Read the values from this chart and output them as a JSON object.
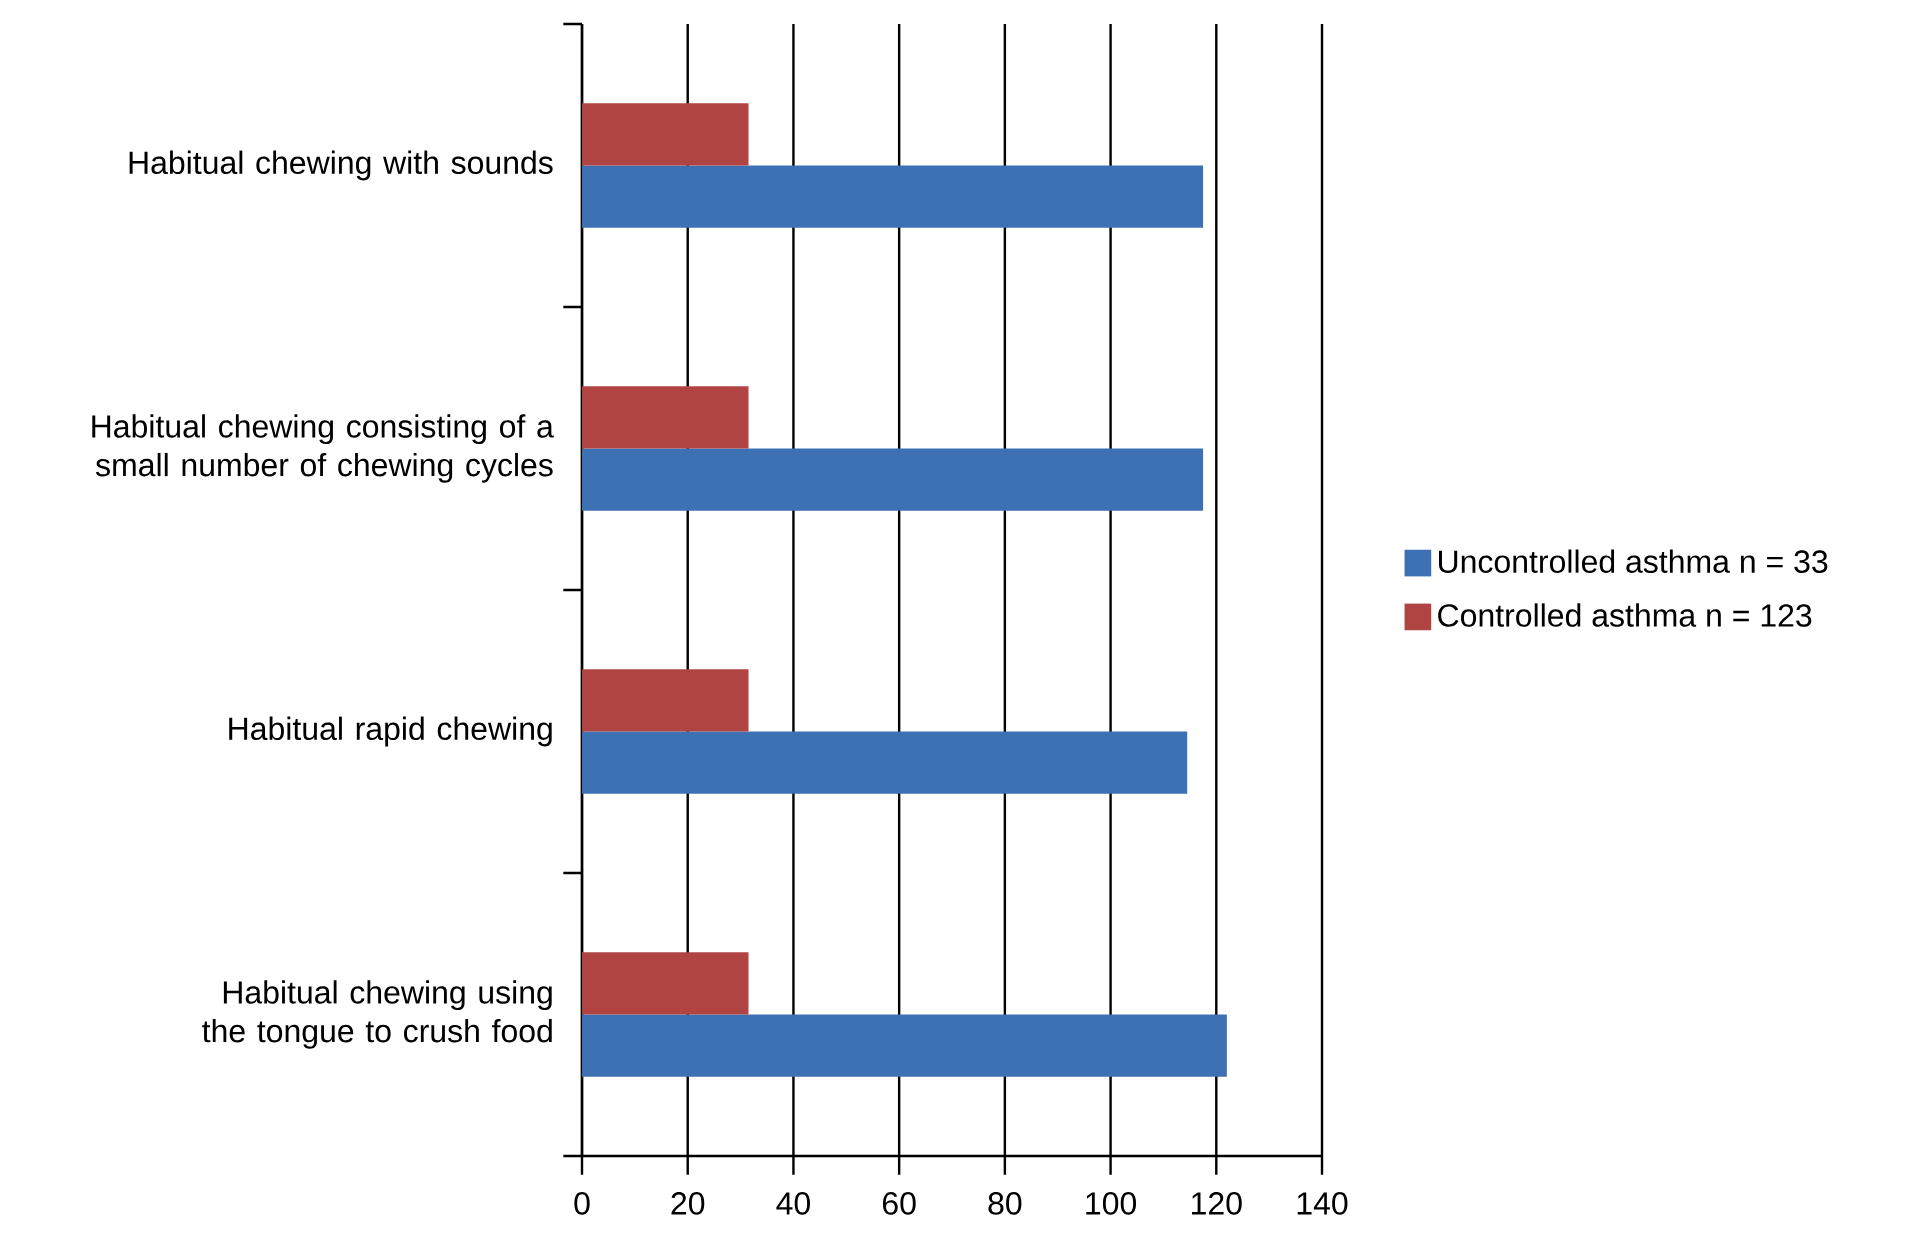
{
  "chart_data": {
    "type": "bar",
    "orientation": "horizontal",
    "categories": [
      "Habitual chewing with sounds",
      "Habitual chewing consisting of a small number of chewing cycles",
      "Habitual rapid chewing",
      "Habitual chewing using the tongue to crush food"
    ],
    "series": [
      {
        "name": "Uncontrolled asthma n = 33",
        "color": "#3d71b3",
        "values": [
          117.5,
          117.5,
          114.5,
          122
        ]
      },
      {
        "name": "Controlled asthma n = 123",
        "color": "#b04443",
        "values": [
          31.5,
          31.5,
          31.5,
          31.5
        ]
      }
    ],
    "xlim": [
      0,
      140
    ],
    "xticks": [
      0,
      20,
      40,
      60,
      80,
      100,
      120,
      140
    ],
    "grid": "x",
    "legend": "right"
  }
}
